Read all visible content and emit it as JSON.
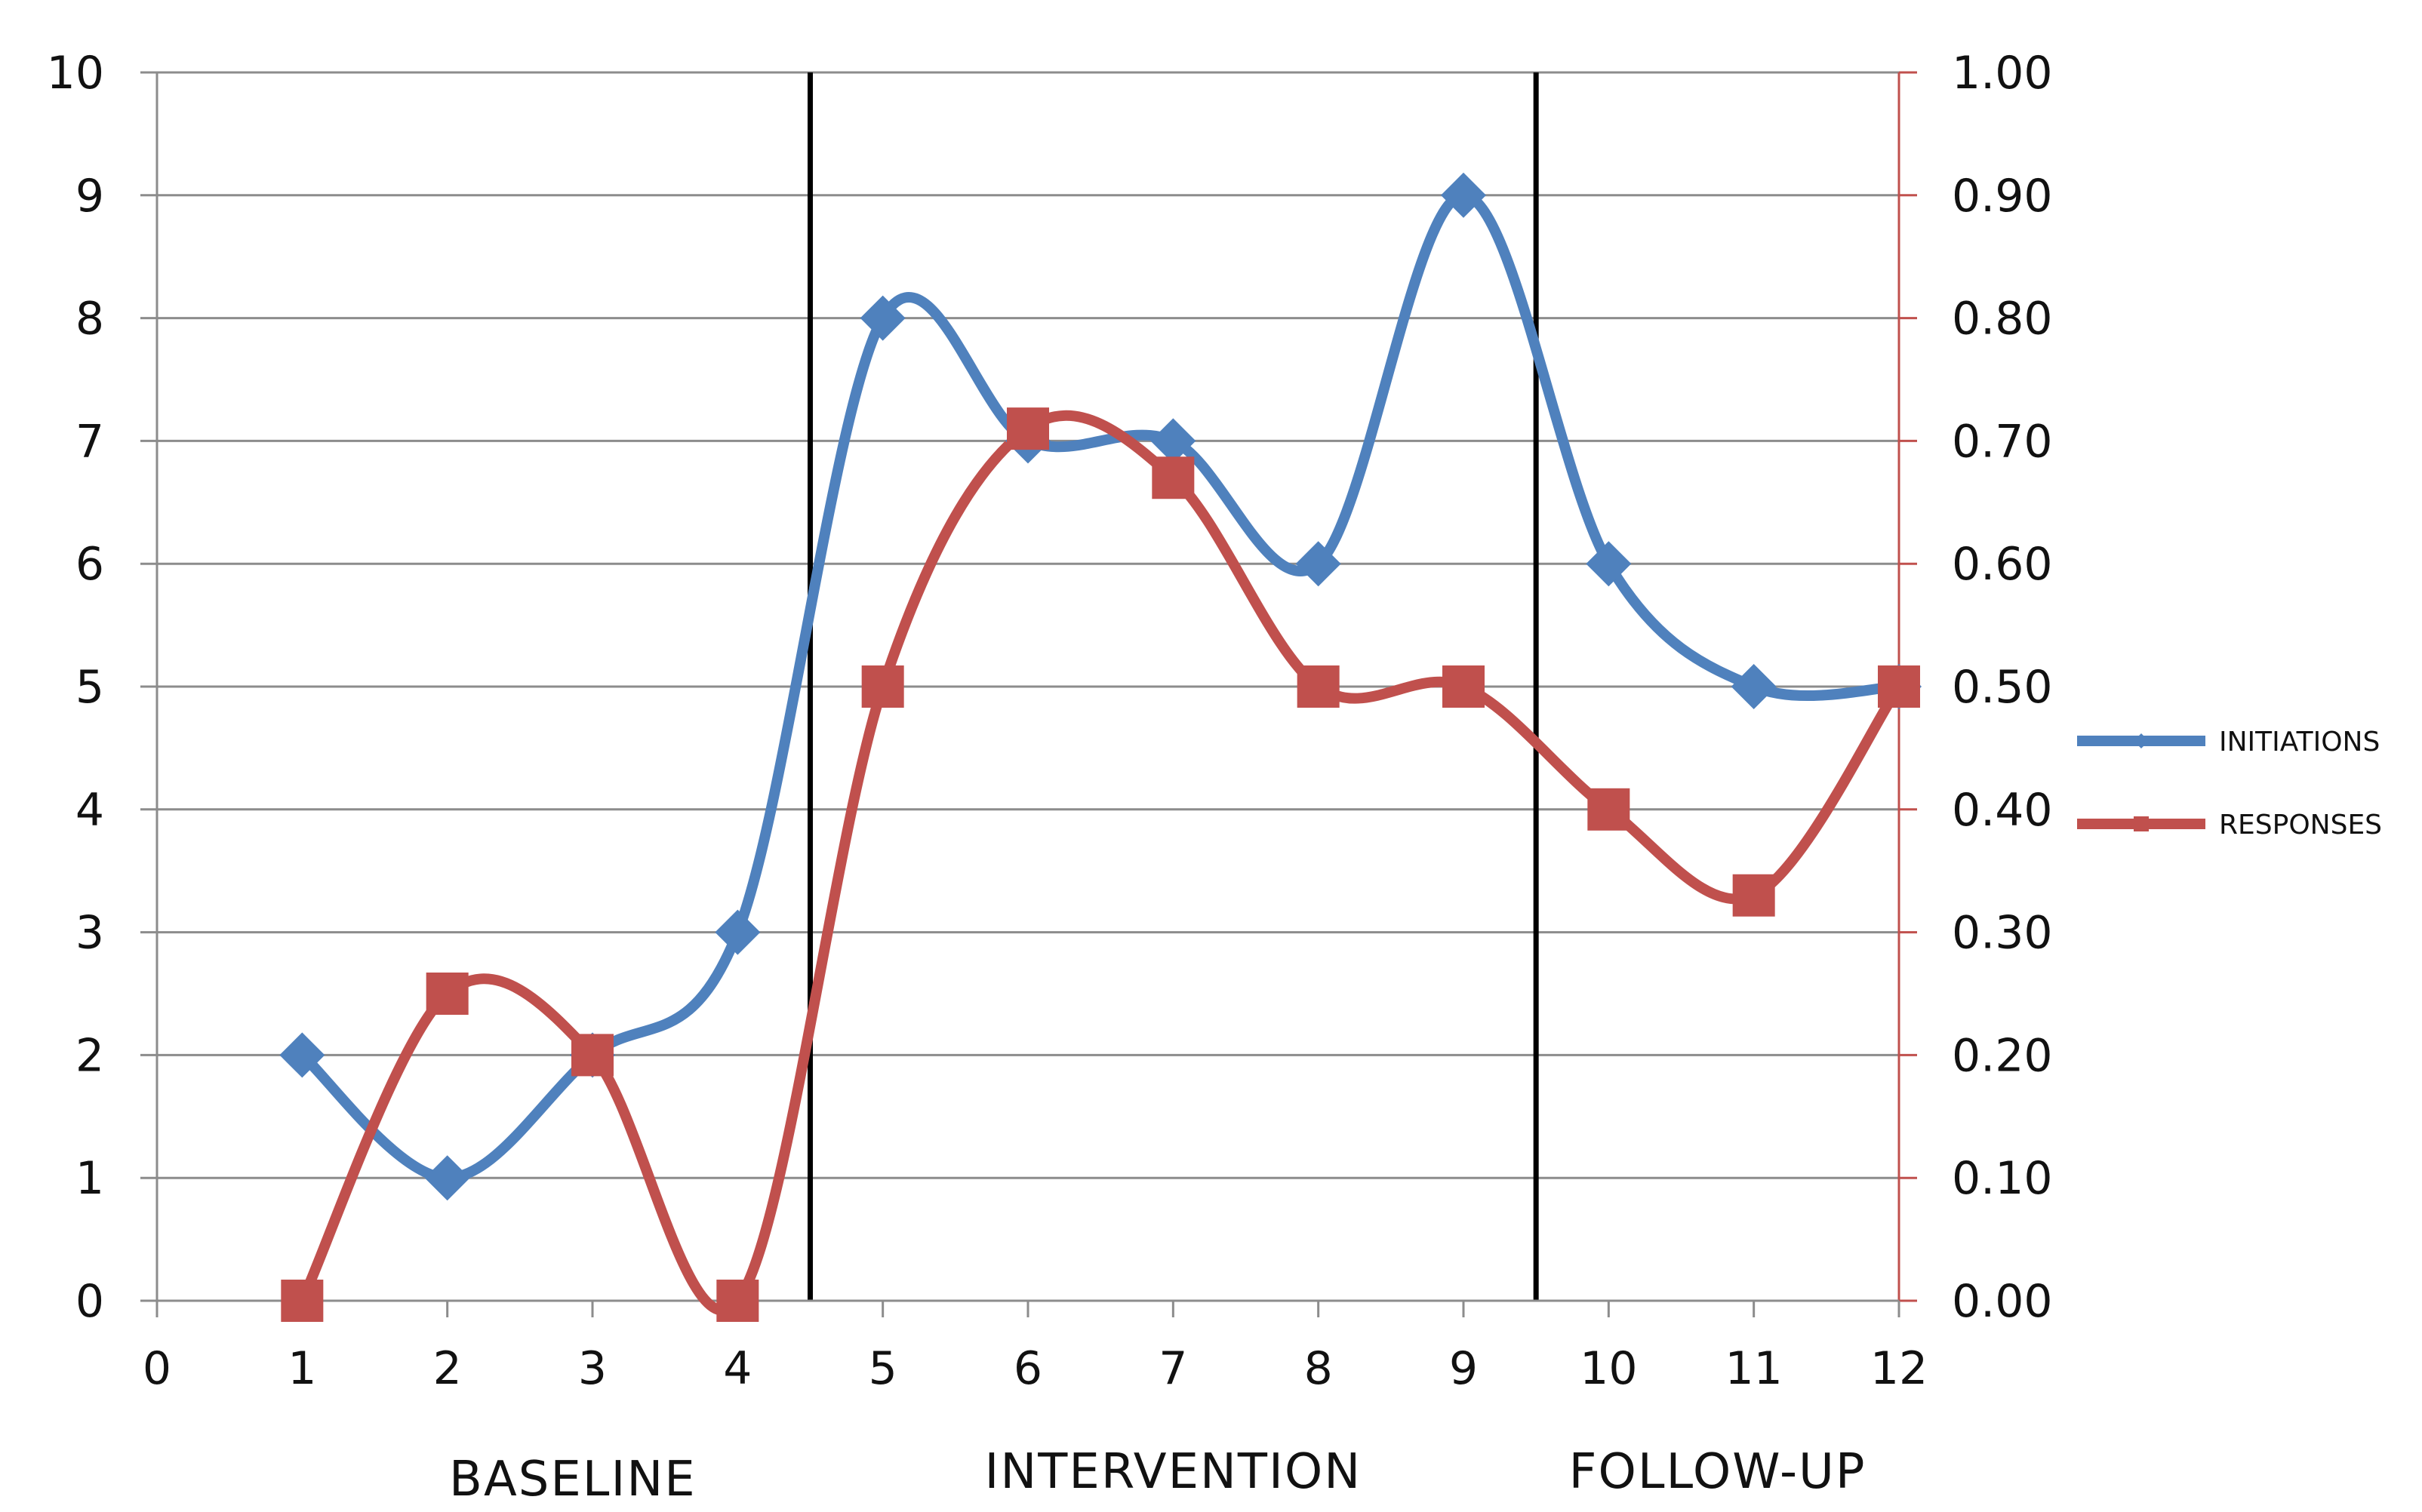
{
  "chart_data": {
    "type": "line",
    "x": [
      1,
      2,
      3,
      4,
      5,
      6,
      7,
      8,
      9,
      10,
      11,
      12
    ],
    "series": [
      {
        "name": "INITIATIONS",
        "axis": "left",
        "color": "#4f81bd",
        "marker": "diamond",
        "values": [
          2,
          1,
          2,
          3,
          8,
          7,
          7,
          6,
          9,
          6,
          5,
          5
        ]
      },
      {
        "name": "RESPONSES",
        "axis": "right",
        "color": "#c0504d",
        "marker": "square",
        "values": [
          0.0,
          0.25,
          0.2,
          0.0,
          0.5,
          0.71,
          0.67,
          0.5,
          0.5,
          0.4,
          0.33,
          0.5
        ]
      }
    ],
    "xlim": [
      0,
      12
    ],
    "ylim_left": [
      0,
      10
    ],
    "ylim_right": [
      0,
      1
    ],
    "x_ticks": [
      "0",
      "1",
      "2",
      "3",
      "4",
      "5",
      "6",
      "7",
      "8",
      "9",
      "10",
      "11",
      "12"
    ],
    "y_left_ticks": [
      "0",
      "1",
      "2",
      "3",
      "4",
      "5",
      "6",
      "7",
      "8",
      "9",
      "10"
    ],
    "y_right_ticks": [
      "0.00",
      "0.10",
      "0.20",
      "0.30",
      "0.40",
      "0.50",
      "0.60",
      "0.70",
      "0.80",
      "0.90",
      "1.00"
    ],
    "phase_lines": [
      4.5,
      9.5
    ],
    "phase_labels": [
      "BASELINE",
      "INTERVENTION",
      "FOLLOW-UP"
    ],
    "grid": "horizontal",
    "legend_position": "right",
    "smooth": true,
    "title": "",
    "xlabel": "",
    "ylabel": ""
  }
}
